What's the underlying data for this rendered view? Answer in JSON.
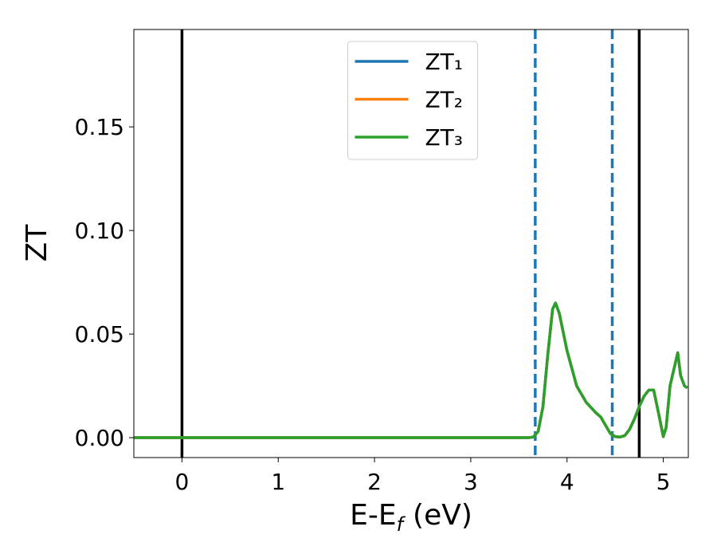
{
  "chart_data": {
    "type": "line",
    "xlabel": [
      "E-E",
      "f",
      "(eV)"
    ],
    "ylabel": "ZT",
    "x": [
      -0.5,
      0,
      1,
      2,
      3,
      3.5,
      3.6,
      3.65,
      3.7,
      3.75,
      3.8,
      3.85,
      3.88,
      3.92,
      4.0,
      4.1,
      4.2,
      4.3,
      4.35,
      4.4,
      4.45,
      4.5,
      4.55,
      4.6,
      4.65,
      4.7,
      4.75,
      4.8,
      4.85,
      4.9,
      4.95,
      5.0,
      5.03,
      5.07,
      5.1,
      5.15,
      5.18,
      5.22,
      5.25
    ],
    "series": [
      {
        "name": "ZT₁",
        "color": "#1f77b4",
        "values": [
          0,
          0,
          0,
          0,
          0,
          0,
          0,
          0.0003,
          0.003,
          0.015,
          0.04,
          0.062,
          0.065,
          0.06,
          0.042,
          0.025,
          0.017,
          0.012,
          0.01,
          0.006,
          0.002,
          0.0005,
          0.0003,
          0.001,
          0.004,
          0.009,
          0.015,
          0.02,
          0.023,
          0.023,
          0.012,
          0.0005,
          0.005,
          0.025,
          0.031,
          0.041,
          0.03,
          0.025,
          0.024
        ]
      },
      {
        "name": "ZT₂",
        "color": "#ff7f0e",
        "values": [
          0,
          0,
          0,
          0,
          0,
          0,
          0,
          0.0003,
          0.003,
          0.015,
          0.04,
          0.062,
          0.065,
          0.06,
          0.042,
          0.025,
          0.017,
          0.012,
          0.01,
          0.006,
          0.002,
          0.0005,
          0.0003,
          0.001,
          0.004,
          0.009,
          0.015,
          0.02,
          0.023,
          0.023,
          0.012,
          0.0005,
          0.005,
          0.025,
          0.031,
          0.041,
          0.03,
          0.025,
          0.024
        ]
      },
      {
        "name": "ZT₃",
        "color": "#2ca02c",
        "values": [
          0,
          0,
          0,
          0,
          0,
          0,
          0,
          0.0003,
          0.003,
          0.015,
          0.04,
          0.062,
          0.065,
          0.06,
          0.042,
          0.025,
          0.017,
          0.012,
          0.01,
          0.006,
          0.002,
          0.0005,
          0.0003,
          0.001,
          0.004,
          0.009,
          0.015,
          0.02,
          0.023,
          0.023,
          0.012,
          0.0005,
          0.005,
          0.025,
          0.031,
          0.041,
          0.03,
          0.025,
          0.024
        ]
      }
    ],
    "vlines": [
      {
        "x": 0,
        "color": "#000000",
        "style": "solid"
      },
      {
        "x": 4.75,
        "color": "#000000",
        "style": "solid"
      },
      {
        "x": 3.67,
        "color": "#1f77b4",
        "style": "dashed"
      },
      {
        "x": 4.47,
        "color": "#1f77b4",
        "style": "dashed"
      }
    ],
    "xlim": [
      -0.5,
      5.26
    ],
    "ylim": [
      -0.0096,
      0.197
    ],
    "xticks": [
      0,
      1,
      2,
      3,
      4,
      5
    ],
    "yticks": [
      {
        "value": 0,
        "label": "0.00"
      },
      {
        "value": 0.05,
        "label": "0.05"
      },
      {
        "value": 0.1,
        "label": "0.10"
      },
      {
        "value": 0.15,
        "label": "0.15"
      }
    ],
    "legend": "upper center"
  }
}
